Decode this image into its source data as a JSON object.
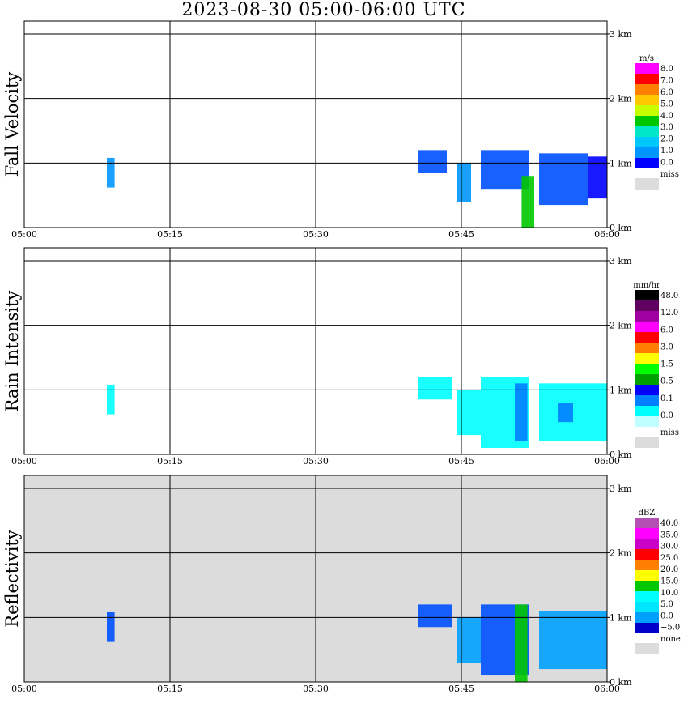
{
  "title": "2023-08-30   05:00-06:00 UTC",
  "x_tick_labels": [
    "05:00",
    "05:15",
    "05:30",
    "05:45",
    "06:00"
  ],
  "y_tick_labels": [
    "0 km",
    "1 km",
    "2 km",
    "3 km"
  ],
  "missing_color": "#dcdcdc",
  "chart_data": [
    {
      "type": "heatmap",
      "title": "Fall Velocity",
      "ylabel": "Fall Velocity",
      "xlabel": "",
      "x_range_minutes": [
        0,
        60
      ],
      "y_range_km": [
        0,
        3.2
      ],
      "grid": true,
      "background": "#ffffff",
      "colorbar": {
        "unit": "m/s",
        "labels": [
          "8.0",
          "7.0",
          "6.0",
          "5.0",
          "4.0",
          "3.0",
          "2.0",
          "1.0",
          "0.0"
        ],
        "missing_label": "miss",
        "colors": [
          "#ff00ff",
          "#ff0000",
          "#ff7f00",
          "#ffc800",
          "#c8ff00",
          "#00c800",
          "#00e6c8",
          "#00c8ff",
          "#0096ff",
          "#0000ff"
        ]
      },
      "echoes": [
        {
          "t0": 8.5,
          "t1": 9.3,
          "z0": 0.62,
          "z1": 1.08,
          "color": "#0096ff"
        },
        {
          "t0": 40.5,
          "t1": 43.5,
          "z0": 0.85,
          "z1": 1.2,
          "color": "#0050ff"
        },
        {
          "t0": 44.5,
          "t1": 46.0,
          "z0": 0.4,
          "z1": 1.0,
          "color": "#0096ff"
        },
        {
          "t0": 47.0,
          "t1": 52.0,
          "z0": 0.6,
          "z1": 1.2,
          "color": "#0050ff"
        },
        {
          "t0": 51.2,
          "t1": 52.5,
          "z0": 0.0,
          "z1": 0.8,
          "color": "#00c800"
        },
        {
          "t0": 53.0,
          "t1": 58.0,
          "z0": 0.35,
          "z1": 1.15,
          "color": "#0050ff"
        },
        {
          "t0": 58.0,
          "t1": 60.0,
          "z0": 0.45,
          "z1": 1.1,
          "color": "#0000ff"
        }
      ]
    },
    {
      "type": "heatmap",
      "title": "Rain Intensity",
      "ylabel": "Rain Intensity",
      "xlabel": "",
      "x_range_minutes": [
        0,
        60
      ],
      "y_range_km": [
        0,
        3.2
      ],
      "grid": true,
      "background": "#ffffff",
      "colorbar": {
        "unit": "mm/hr",
        "labels": [
          "48.0",
          "12.0",
          "6.0",
          "3.0",
          "1.5",
          "0.5",
          "0.1",
          "0.0"
        ],
        "missing_label": "miss",
        "colors": [
          "#000000",
          "#600060",
          "#a000a0",
          "#ff00ff",
          "#ff0000",
          "#ff8000",
          "#ffff00",
          "#00ff00",
          "#00a000",
          "#0000ff",
          "#0080ff",
          "#00ffff",
          "#c0ffff"
        ]
      },
      "echoes": [
        {
          "t0": 8.5,
          "t1": 9.3,
          "z0": 0.62,
          "z1": 1.08,
          "color": "#00ffff"
        },
        {
          "t0": 40.5,
          "t1": 44.0,
          "z0": 0.85,
          "z1": 1.2,
          "color": "#00ffff"
        },
        {
          "t0": 44.5,
          "t1": 47.0,
          "z0": 0.3,
          "z1": 1.0,
          "color": "#00ffff"
        },
        {
          "t0": 47.0,
          "t1": 52.0,
          "z0": 0.1,
          "z1": 1.2,
          "color": "#00ffff"
        },
        {
          "t0": 50.5,
          "t1": 51.8,
          "z0": 0.2,
          "z1": 1.1,
          "color": "#0080ff"
        },
        {
          "t0": 53.0,
          "t1": 60.0,
          "z0": 0.2,
          "z1": 1.1,
          "color": "#00ffff"
        },
        {
          "t0": 55.0,
          "t1": 56.5,
          "z0": 0.5,
          "z1": 0.8,
          "color": "#0080ff"
        }
      ]
    },
    {
      "type": "heatmap",
      "title": "Reflectivity",
      "ylabel": "Reflectivity",
      "xlabel": "",
      "x_range_minutes": [
        0,
        60
      ],
      "y_range_km": [
        0,
        3.2
      ],
      "grid": true,
      "background": "#dcdcdc",
      "colorbar": {
        "unit": "dBZ",
        "labels": [
          "40.0",
          "35.0",
          "30.0",
          "25.0",
          "20.0",
          "15.0",
          "10.0",
          "5.0",
          "0.0",
          "−5.0"
        ],
        "missing_label": "none",
        "colors": [
          "#b450b4",
          "#ff00ff",
          "#c800c8",
          "#ff0000",
          "#ff8000",
          "#ffff00",
          "#00c800",
          "#00ffff",
          "#00e6ff",
          "#00a0ff",
          "#0000c8"
        ]
      },
      "echoes": [
        {
          "t0": 8.5,
          "t1": 9.3,
          "z0": 0.62,
          "z1": 1.08,
          "color": "#0050ff"
        },
        {
          "t0": 40.5,
          "t1": 44.0,
          "z0": 0.85,
          "z1": 1.2,
          "color": "#0050ff"
        },
        {
          "t0": 44.5,
          "t1": 47.0,
          "z0": 0.3,
          "z1": 1.0,
          "color": "#00a0ff"
        },
        {
          "t0": 47.0,
          "t1": 52.0,
          "z0": 0.1,
          "z1": 1.2,
          "color": "#0050ff"
        },
        {
          "t0": 50.5,
          "t1": 51.8,
          "z0": 0.0,
          "z1": 1.2,
          "color": "#00c800"
        },
        {
          "t0": 53.0,
          "t1": 60.0,
          "z0": 0.2,
          "z1": 1.1,
          "color": "#00a0ff"
        }
      ]
    }
  ]
}
